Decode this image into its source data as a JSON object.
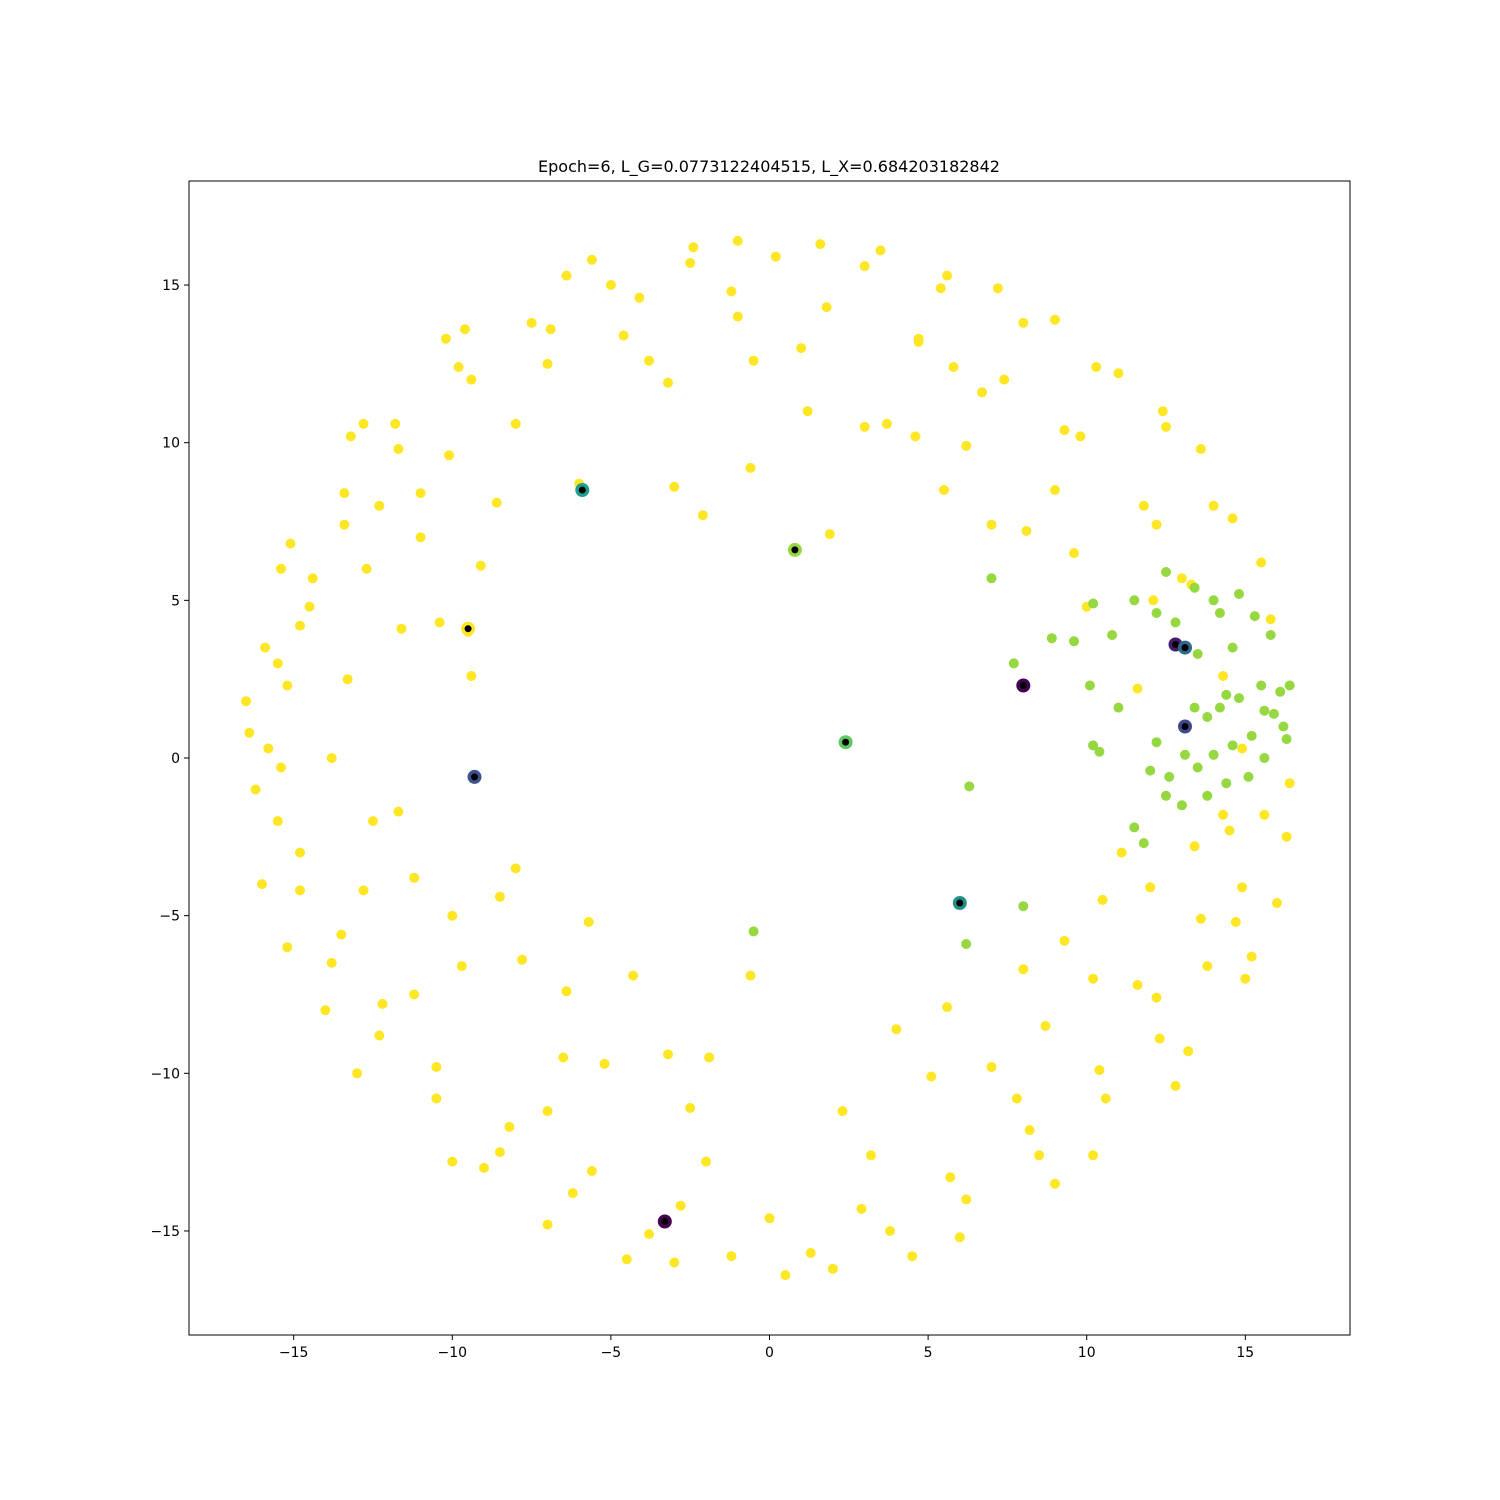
{
  "chart_data": {
    "type": "scatter",
    "title": "Epoch=6, L_G=0.0773122404515, L_X=0.684203182842",
    "xlabel": "",
    "ylabel": "",
    "xlim": [
      -18.3,
      18.3
    ],
    "ylim": [
      -18.3,
      18.3
    ],
    "x_ticks": [
      -15,
      -10,
      -5,
      0,
      5,
      10,
      15
    ],
    "y_ticks": [
      -15,
      -10,
      -5,
      0,
      5,
      10,
      15
    ],
    "x_tick_labels": [
      "−15",
      "−10",
      "−5",
      "0",
      "5",
      "10",
      "15"
    ],
    "y_tick_labels": [
      "−15",
      "−10",
      "−5",
      "0",
      "5",
      "10",
      "15"
    ],
    "grid": false,
    "legend": false,
    "colors": {
      "yellow": "#fde725",
      "green": "#95d840",
      "black": "#000000"
    },
    "points_description": "yellow ring of samples radius ~11-16.5 with gap near angle 90 and sector of green points near angle 0",
    "series": [
      {
        "color": "#fde725",
        "points": [
          [
            -14.5,
            4.8
          ],
          [
            -15.2,
            2.3
          ],
          [
            -15.8,
            0.3
          ],
          [
            -15.5,
            -2.0
          ],
          [
            -14.8,
            -4.2
          ],
          [
            -13.8,
            -6.5
          ],
          [
            -12.3,
            -8.8
          ],
          [
            -10.5,
            -10.8
          ],
          [
            -8.5,
            -12.5
          ],
          [
            -6.2,
            -13.8
          ],
          [
            -3.8,
            -15.1
          ],
          [
            -1.2,
            -15.8
          ],
          [
            1.3,
            -15.7
          ],
          [
            3.8,
            -15.0
          ],
          [
            6.2,
            -14.0
          ],
          [
            8.5,
            -12.6
          ],
          [
            10.6,
            -10.8
          ],
          [
            12.3,
            -8.9
          ],
          [
            13.8,
            -6.6
          ],
          [
            14.9,
            -4.1
          ],
          [
            15.6,
            -1.8
          ],
          [
            14.7,
            -5.2
          ],
          [
            14.0,
            8.0
          ],
          [
            12.5,
            10.5
          ],
          [
            10.3,
            12.4
          ],
          [
            8.0,
            13.8
          ],
          [
            5.4,
            14.9
          ],
          [
            3.0,
            15.6
          ],
          [
            0.2,
            15.9
          ],
          [
            -2.5,
            15.7
          ],
          [
            -5.0,
            15.0
          ],
          [
            -7.5,
            13.8
          ],
          [
            -9.8,
            12.4
          ],
          [
            -11.8,
            10.6
          ],
          [
            -13.4,
            8.4
          ],
          [
            -16.2,
            -1.0
          ],
          [
            -15.9,
            3.5
          ],
          [
            -14.0,
            -8.0
          ],
          [
            -9.0,
            -13.0
          ],
          [
            -4.5,
            -15.9
          ],
          [
            0.5,
            -16.4
          ],
          [
            4.5,
            -15.8
          ],
          [
            9.0,
            -13.5
          ],
          [
            12.8,
            -10.4
          ],
          [
            15.2,
            -6.3
          ],
          [
            16.3,
            -2.5
          ],
          [
            15.5,
            6.2
          ],
          [
            13.6,
            9.8
          ],
          [
            11.0,
            12.2
          ],
          [
            7.2,
            14.9
          ],
          [
            3.5,
            16.1
          ],
          [
            -1.0,
            16.4
          ],
          [
            -5.6,
            15.8
          ],
          [
            -9.6,
            13.6
          ],
          [
            -12.8,
            10.6
          ],
          [
            -15.1,
            6.8
          ],
          [
            -16.5,
            1.8
          ],
          [
            -12.7,
            6.0
          ],
          [
            -11.0,
            8.4
          ],
          [
            -13.3,
            2.5
          ],
          [
            -12.8,
            -4.2
          ],
          [
            -11.2,
            -7.5
          ],
          [
            -7.0,
            -11.2
          ],
          [
            -2.0,
            -12.8
          ],
          [
            3.2,
            -12.6
          ],
          [
            7.8,
            -10.8
          ],
          [
            11.6,
            -7.2
          ],
          [
            13.4,
            -2.8
          ],
          [
            12.2,
            7.4
          ],
          [
            9.3,
            10.4
          ],
          [
            5.8,
            12.4
          ],
          [
            1.0,
            13.0
          ],
          [
            -3.8,
            12.6
          ],
          [
            -8.0,
            10.6
          ],
          [
            -11.0,
            7.0
          ],
          [
            -9.5,
            4.0
          ],
          [
            -9.4,
            2.6
          ],
          [
            -8.0,
            -3.5
          ],
          [
            -5.7,
            -5.2
          ],
          [
            -4.3,
            -6.9
          ],
          [
            -0.6,
            -6.9
          ],
          [
            -0.6,
            9.2
          ],
          [
            -2.1,
            7.7
          ],
          [
            -3.0,
            8.6
          ],
          [
            -6.0,
            8.7
          ],
          [
            1.9,
            7.1
          ],
          [
            3.0,
            10.5
          ],
          [
            4.6,
            10.2
          ],
          [
            7.0,
            7.4
          ],
          [
            5.5,
            8.5
          ],
          [
            -7.8,
            -6.4
          ],
          [
            -8.5,
            -4.4
          ],
          [
            -6.4,
            -7.4
          ],
          [
            -3.2,
            -9.4
          ],
          [
            -1.9,
            -9.5
          ],
          [
            4.0,
            -8.6
          ],
          [
            5.6,
            -7.9
          ],
          [
            8.7,
            -8.5
          ],
          [
            9.3,
            -5.8
          ],
          [
            10.5,
            -4.5
          ],
          [
            11.1,
            -3.0
          ],
          [
            11.6,
            2.2
          ],
          [
            1.2,
            11.0
          ],
          [
            -1.0,
            14.0
          ],
          [
            -3.2,
            11.9
          ],
          [
            4.7,
            13.2
          ],
          [
            6.7,
            11.6
          ],
          [
            9.0,
            8.5
          ],
          [
            12.1,
            5.0
          ],
          [
            13.0,
            5.7
          ],
          [
            14.3,
            -1.8
          ],
          [
            12.0,
            -4.1
          ],
          [
            10.2,
            -7.0
          ],
          [
            7.0,
            -9.8
          ],
          [
            -8.6,
            8.1
          ],
          [
            -9.1,
            6.1
          ],
          [
            -10.4,
            4.3
          ],
          [
            -11.6,
            4.1
          ],
          [
            -11.7,
            -1.7
          ],
          [
            -11.2,
            -3.8
          ],
          [
            -9.7,
            -6.6
          ],
          [
            -5.2,
            -9.7
          ],
          [
            -2.5,
            -11.1
          ],
          [
            2.3,
            -11.2
          ],
          [
            5.1,
            -10.1
          ],
          [
            8.0,
            -6.7
          ],
          [
            10.0,
            4.8
          ],
          [
            9.6,
            6.5
          ],
          [
            8.1,
            7.2
          ],
          [
            6.2,
            9.9
          ],
          [
            3.7,
            10.6
          ],
          [
            -0.5,
            12.6
          ],
          [
            -4.6,
            13.4
          ],
          [
            -7.0,
            12.5
          ],
          [
            -10.1,
            9.6
          ],
          [
            -12.3,
            8.0
          ],
          [
            -14.4,
            5.7
          ],
          [
            -15.5,
            3.0
          ],
          [
            -15.4,
            -0.3
          ],
          [
            -14.8,
            -3.0
          ],
          [
            -13.5,
            -5.6
          ],
          [
            -12.2,
            -7.8
          ],
          [
            -10.5,
            -9.8
          ],
          [
            -8.2,
            -11.7
          ],
          [
            -5.6,
            -13.1
          ],
          [
            -2.8,
            -14.2
          ],
          [
            0.0,
            -14.6
          ],
          [
            2.9,
            -14.3
          ],
          [
            5.7,
            -13.3
          ],
          [
            8.2,
            -11.8
          ],
          [
            10.4,
            -9.9
          ],
          [
            12.2,
            -7.6
          ],
          [
            13.6,
            -5.1
          ],
          [
            14.5,
            -2.3
          ],
          [
            14.9,
            0.3
          ],
          [
            14.3,
            2.6
          ],
          [
            13.3,
            5.5
          ],
          [
            11.8,
            8.0
          ],
          [
            9.8,
            10.2
          ],
          [
            7.4,
            12.0
          ],
          [
            4.7,
            13.3
          ],
          [
            1.8,
            14.3
          ],
          [
            -1.2,
            14.8
          ],
          [
            -4.1,
            14.6
          ],
          [
            -6.9,
            13.6
          ],
          [
            -9.4,
            12.0
          ],
          [
            -11.7,
            9.8
          ],
          [
            -13.4,
            7.4
          ],
          [
            -14.8,
            4.2
          ],
          [
            -16.0,
            -4.0
          ],
          [
            -15.2,
            -6.0
          ],
          [
            -13.0,
            -10.0
          ],
          [
            -10.0,
            -12.8
          ],
          [
            -7.0,
            -14.8
          ],
          [
            -3.0,
            -16.0
          ],
          [
            2.0,
            -16.2
          ],
          [
            6.0,
            -15.2
          ],
          [
            10.2,
            -12.6
          ],
          [
            13.2,
            -9.3
          ],
          [
            15.0,
            -7.0
          ],
          [
            16.0,
            -4.6
          ],
          [
            16.4,
            -0.8
          ],
          [
            15.8,
            4.4
          ],
          [
            14.6,
            7.6
          ],
          [
            12.4,
            11.0
          ],
          [
            9.0,
            13.9
          ],
          [
            5.6,
            15.3
          ],
          [
            1.6,
            16.3
          ],
          [
            -2.4,
            16.2
          ],
          [
            -6.4,
            15.3
          ],
          [
            -10.2,
            13.3
          ],
          [
            -13.2,
            10.2
          ],
          [
            -15.4,
            6.0
          ],
          [
            -16.4,
            0.8
          ],
          [
            -13.8,
            0.0
          ],
          [
            -12.5,
            -2.0
          ],
          [
            -10.0,
            -5.0
          ],
          [
            -6.5,
            -9.5
          ]
        ]
      },
      {
        "color": "#95d840",
        "points": [
          [
            14.2,
            4.6
          ],
          [
            14.8,
            5.2
          ],
          [
            15.3,
            4.5
          ],
          [
            15.8,
            3.9
          ],
          [
            14.6,
            3.5
          ],
          [
            13.5,
            3.3
          ],
          [
            12.8,
            4.3
          ],
          [
            12.2,
            4.6
          ],
          [
            11.5,
            5.0
          ],
          [
            10.8,
            3.9
          ],
          [
            10.2,
            4.9
          ],
          [
            9.6,
            3.7
          ],
          [
            15.5,
            2.3
          ],
          [
            16.1,
            2.1
          ],
          [
            14.8,
            1.9
          ],
          [
            14.2,
            1.6
          ],
          [
            13.4,
            1.6
          ],
          [
            15.6,
            1.5
          ],
          [
            16.2,
            1.0
          ],
          [
            15.2,
            0.7
          ],
          [
            14.6,
            0.4
          ],
          [
            14.0,
            0.1
          ],
          [
            13.5,
            -0.3
          ],
          [
            15.6,
            0.0
          ],
          [
            15.1,
            -0.6
          ],
          [
            14.4,
            -0.8
          ],
          [
            13.8,
            -1.2
          ],
          [
            13.0,
            -1.5
          ],
          [
            12.5,
            -1.2
          ],
          [
            12.0,
            -0.4
          ],
          [
            12.2,
            0.5
          ],
          [
            11.5,
            -2.2
          ],
          [
            10.2,
            0.4
          ],
          [
            10.4,
            0.2
          ],
          [
            11.0,
            1.6
          ],
          [
            10.1,
            2.3
          ],
          [
            7.7,
            3.0
          ],
          [
            8.9,
            3.8
          ],
          [
            7.0,
            5.7
          ],
          [
            6.3,
            -0.9
          ],
          [
            6.2,
            -5.9
          ],
          [
            8.0,
            -4.7
          ],
          [
            -0.5,
            -5.5
          ],
          [
            16.4,
            2.3
          ],
          [
            16.3,
            0.6
          ],
          [
            15.9,
            1.4
          ],
          [
            14.4,
            2.0
          ],
          [
            13.8,
            1.3
          ],
          [
            13.1,
            0.1
          ],
          [
            12.6,
            -0.6
          ],
          [
            11.8,
            -2.7
          ],
          [
            12.5,
            5.9
          ],
          [
            13.4,
            5.4
          ],
          [
            14.0,
            5.0
          ]
        ]
      }
    ],
    "highlighted_points": [
      {
        "x": -5.9,
        "y": 8.5,
        "ring_color": "#1f9e89"
      },
      {
        "x": 0.8,
        "y": 6.6,
        "ring_color": "#95d840"
      },
      {
        "x": -9.5,
        "y": 4.1,
        "ring_color": "#fde725"
      },
      {
        "x": -9.3,
        "y": -0.6,
        "ring_color": "#3b528b"
      },
      {
        "x": 2.4,
        "y": 0.5,
        "ring_color": "#5ec962"
      },
      {
        "x": 6.0,
        "y": -4.6,
        "ring_color": "#21918c"
      },
      {
        "x": 8.0,
        "y": 2.3,
        "ring_color": "#440154"
      },
      {
        "x": 12.8,
        "y": 3.6,
        "ring_color": "#481a6c"
      },
      {
        "x": 13.1,
        "y": 3.5,
        "ring_color": "#31688e"
      },
      {
        "x": 13.1,
        "y": 1.0,
        "ring_color": "#3e4a89"
      },
      {
        "x": -3.3,
        "y": -14.7,
        "ring_color": "#440154"
      }
    ]
  }
}
